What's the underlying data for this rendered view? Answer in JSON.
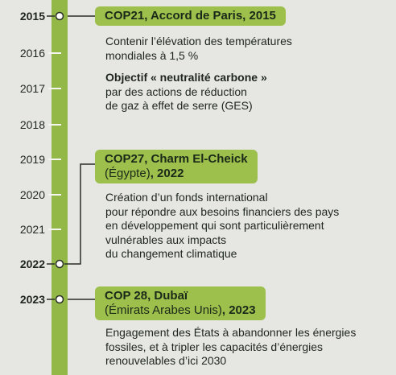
{
  "timeline": {
    "years": [
      {
        "year": 2015,
        "bold": true
      },
      {
        "year": 2016,
        "bold": false
      },
      {
        "year": 2017,
        "bold": false
      },
      {
        "year": 2018,
        "bold": false
      },
      {
        "year": 2019,
        "bold": false
      },
      {
        "year": 2020,
        "bold": false
      },
      {
        "year": 2021,
        "bold": false
      },
      {
        "year": 2022,
        "bold": true
      },
      {
        "year": 2023,
        "bold": true
      }
    ],
    "events": [
      {
        "title": "COP21, Accord de Paris, 2015",
        "lines": [
          {
            "text": "Contenir l’élévation des températures",
            "bold": false
          },
          {
            "text": "mondiales à 1,5 %",
            "bold": false
          },
          {
            "text": "Objectif « neutralité carbone »",
            "bold": true
          },
          {
            "text": "par des actions de réduction",
            "bold": false
          },
          {
            "text": "de gaz à effet de serre (GES)",
            "bold": false
          }
        ]
      },
      {
        "title": "COP27, Charm El-Cheick",
        "subtitle": "(Égypte)",
        "subtitle_bold": ", 2022",
        "lines": [
          {
            "text": "Création d’un fonds international",
            "bold": false
          },
          {
            "text": "pour répondre aux besoins financiers des pays",
            "bold": false
          },
          {
            "text": "en développement qui sont particulièrement",
            "bold": false
          },
          {
            "text": "vulnérables aux impacts",
            "bold": false
          },
          {
            "text": "du changement climatique",
            "bold": false
          }
        ]
      },
      {
        "title": "COP 28, Dubaï",
        "subtitle": "(Émirats Arabes Unis)",
        "subtitle_bold": ", 2023",
        "lines": [
          {
            "text": "Engagement des États à abandonner les énergies",
            "bold": false
          },
          {
            "text": "fossiles, et à tripler les capacités d’énergies",
            "bold": false
          },
          {
            "text": "renouvelables d’ici 2030",
            "bold": false
          }
        ]
      }
    ]
  }
}
